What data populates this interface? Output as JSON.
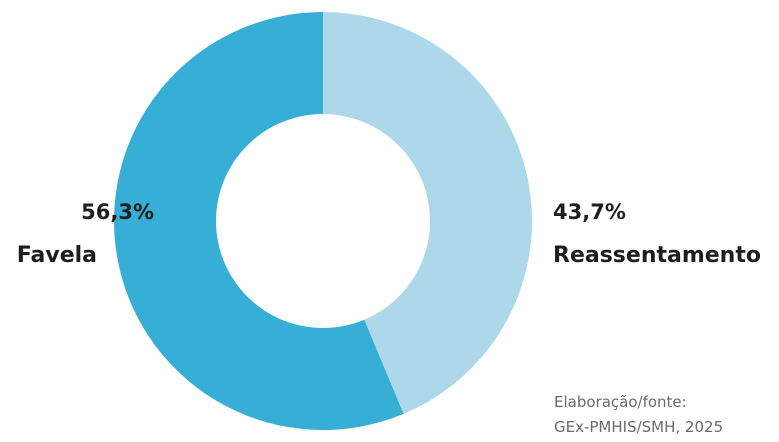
{
  "chart_data": {
    "type": "pie",
    "donut": true,
    "categories": [
      "Reassentamento",
      "Favela"
    ],
    "values": [
      43.7,
      56.3
    ],
    "value_labels": [
      "43,7%",
      "56,3%"
    ],
    "colors": [
      "#acd8ea",
      "#36aed6"
    ],
    "start_angle": "top",
    "direction": "clockwise",
    "legend": "none"
  },
  "labels": {
    "favela_pct": "56,3%",
    "favela_name": "Favela",
    "reassentamento_pct": "43,7%",
    "reassentamento_name": "Reassentamento"
  },
  "source": {
    "line1": "Elaboração/fonte:",
    "line2": "GEx-PMHIS/SMH, 2025"
  }
}
